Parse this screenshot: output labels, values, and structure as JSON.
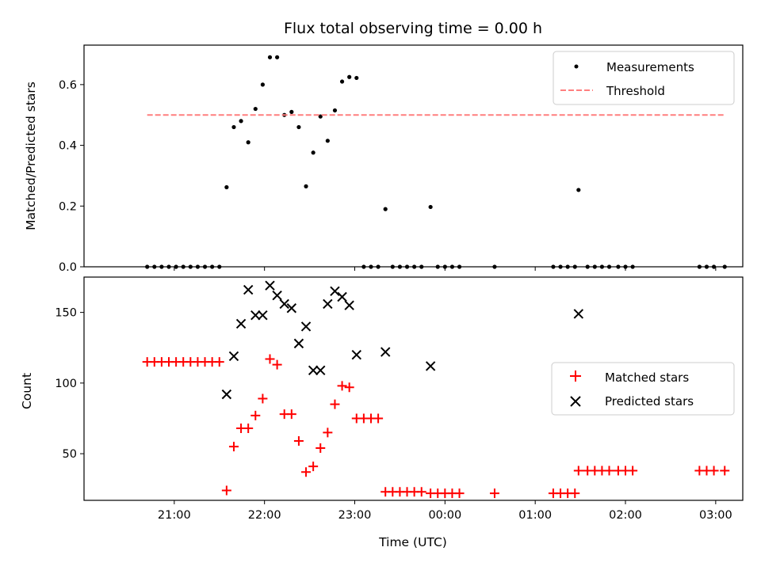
{
  "title": "Flux total observing time = 0.00 h",
  "chart_data": [
    {
      "type": "scatter",
      "ylabel": "Matched/Predicted stars",
      "ylim": [
        0,
        0.73
      ],
      "yticks": [
        0.0,
        0.2,
        0.4,
        0.6
      ],
      "ytick_labels": [
        "0.0",
        "0.2",
        "0.4",
        "0.6"
      ],
      "legend_position": "top-right",
      "series": [
        {
          "name": "Measurements",
          "marker": "dot",
          "color": "#000000",
          "points": [
            [
              20.7,
              0.0
            ],
            [
              20.78,
              0.0
            ],
            [
              20.86,
              0.0
            ],
            [
              20.94,
              0.0
            ],
            [
              21.02,
              0.0
            ],
            [
              21.1,
              0.0
            ],
            [
              21.18,
              0.0
            ],
            [
              21.26,
              0.0
            ],
            [
              21.34,
              0.0
            ],
            [
              21.42,
              0.0
            ],
            [
              21.5,
              0.0
            ],
            [
              21.58,
              0.262
            ],
            [
              21.66,
              0.46
            ],
            [
              21.74,
              0.48
            ],
            [
              21.82,
              0.41
            ],
            [
              21.9,
              0.52
            ],
            [
              21.98,
              0.6
            ],
            [
              22.06,
              0.69
            ],
            [
              22.14,
              0.69
            ],
            [
              22.22,
              0.5
            ],
            [
              22.3,
              0.51
            ],
            [
              22.38,
              0.46
            ],
            [
              22.46,
              0.265
            ],
            [
              22.54,
              0.376
            ],
            [
              22.62,
              0.495
            ],
            [
              22.7,
              0.415
            ],
            [
              22.78,
              0.515
            ],
            [
              22.86,
              0.61
            ],
            [
              22.94,
              0.625
            ],
            [
              23.02,
              0.622
            ],
            [
              23.1,
              0.0
            ],
            [
              23.18,
              0.0
            ],
            [
              23.26,
              0.0
            ],
            [
              23.34,
              0.19
            ],
            [
              23.42,
              0.0
            ],
            [
              23.5,
              0.0
            ],
            [
              23.58,
              0.0
            ],
            [
              23.66,
              0.0
            ],
            [
              23.74,
              0.0
            ],
            [
              23.84,
              0.197
            ],
            [
              23.92,
              0.0
            ],
            [
              24.0,
              0.0
            ],
            [
              24.08,
              0.0
            ],
            [
              24.16,
              0.0
            ],
            [
              24.55,
              0.0
            ],
            [
              25.2,
              0.0
            ],
            [
              25.28,
              0.0
            ],
            [
              25.36,
              0.0
            ],
            [
              25.44,
              0.0
            ],
            [
              25.48,
              0.253
            ],
            [
              25.58,
              0.0
            ],
            [
              25.66,
              0.0
            ],
            [
              25.74,
              0.0
            ],
            [
              25.82,
              0.0
            ],
            [
              25.92,
              0.0
            ],
            [
              26.0,
              0.0
            ],
            [
              26.08,
              0.0
            ],
            [
              26.82,
              0.0
            ],
            [
              26.9,
              0.0
            ],
            [
              26.98,
              0.0
            ],
            [
              27.1,
              0.0
            ]
          ]
        },
        {
          "name": "Threshold",
          "style": "dashed-line",
          "color": "#ff7f7f",
          "x": [
            20.7,
            27.1
          ],
          "y": [
            0.5,
            0.5
          ]
        }
      ]
    },
    {
      "type": "scatter",
      "ylabel": "Count",
      "xlabel": "Time (UTC)",
      "ylim": [
        17,
        175
      ],
      "yticks": [
        50,
        100,
        150
      ],
      "ytick_labels": [
        "50",
        "100",
        "150"
      ],
      "legend_position": "center-right",
      "series": [
        {
          "name": "Matched stars",
          "marker": "plus",
          "color": "#ff0000",
          "points": [
            [
              20.7,
              115
            ],
            [
              20.78,
              115
            ],
            [
              20.86,
              115
            ],
            [
              20.94,
              115
            ],
            [
              21.02,
              115
            ],
            [
              21.1,
              115
            ],
            [
              21.18,
              115
            ],
            [
              21.26,
              115
            ],
            [
              21.34,
              115
            ],
            [
              21.42,
              115
            ],
            [
              21.5,
              115
            ],
            [
              21.58,
              24
            ],
            [
              21.66,
              55
            ],
            [
              21.74,
              68
            ],
            [
              21.82,
              68
            ],
            [
              21.9,
              77
            ],
            [
              21.98,
              89
            ],
            [
              22.06,
              117
            ],
            [
              22.14,
              113
            ],
            [
              22.22,
              78
            ],
            [
              22.3,
              78
            ],
            [
              22.38,
              59
            ],
            [
              22.46,
              37
            ],
            [
              22.54,
              41
            ],
            [
              22.62,
              54
            ],
            [
              22.7,
              65
            ],
            [
              22.78,
              85
            ],
            [
              22.86,
              98
            ],
            [
              22.94,
              97
            ],
            [
              23.02,
              75
            ],
            [
              23.1,
              75
            ],
            [
              23.18,
              75
            ],
            [
              23.26,
              75
            ],
            [
              23.34,
              23
            ],
            [
              23.42,
              23
            ],
            [
              23.5,
              23
            ],
            [
              23.58,
              23
            ],
            [
              23.66,
              23
            ],
            [
              23.74,
              23
            ],
            [
              23.84,
              22
            ],
            [
              23.92,
              22
            ],
            [
              24.0,
              22
            ],
            [
              24.08,
              22
            ],
            [
              24.16,
              22
            ],
            [
              24.55,
              22
            ],
            [
              25.2,
              22
            ],
            [
              25.28,
              22
            ],
            [
              25.36,
              22
            ],
            [
              25.44,
              22
            ],
            [
              25.48,
              38
            ],
            [
              25.58,
              38
            ],
            [
              25.66,
              38
            ],
            [
              25.74,
              38
            ],
            [
              25.82,
              38
            ],
            [
              25.92,
              38
            ],
            [
              26.0,
              38
            ],
            [
              26.08,
              38
            ],
            [
              26.82,
              38
            ],
            [
              26.9,
              38
            ],
            [
              26.98,
              38
            ],
            [
              27.1,
              38
            ]
          ]
        },
        {
          "name": "Predicted stars",
          "marker": "x",
          "color": "#000000",
          "points": [
            [
              21.58,
              92
            ],
            [
              21.66,
              119
            ],
            [
              21.74,
              142
            ],
            [
              21.82,
              166
            ],
            [
              21.9,
              148
            ],
            [
              21.98,
              148
            ],
            [
              22.06,
              169
            ],
            [
              22.14,
              162
            ],
            [
              22.22,
              156
            ],
            [
              22.3,
              153
            ],
            [
              22.38,
              128
            ],
            [
              22.46,
              140
            ],
            [
              22.54,
              109
            ],
            [
              22.62,
              109
            ],
            [
              22.7,
              156
            ],
            [
              22.78,
              165
            ],
            [
              22.86,
              161
            ],
            [
              22.94,
              155
            ],
            [
              23.02,
              120
            ],
            [
              23.34,
              122
            ],
            [
              23.84,
              112
            ],
            [
              25.48,
              149
            ]
          ]
        }
      ]
    }
  ],
  "x_axis": {
    "ticks": [
      21,
      22,
      23,
      24,
      25,
      26,
      27
    ],
    "tick_labels": [
      "21:00",
      "22:00",
      "23:00",
      "00:00",
      "01:00",
      "02:00",
      "03:00"
    ],
    "xlim": [
      20.0,
      27.3
    ]
  }
}
